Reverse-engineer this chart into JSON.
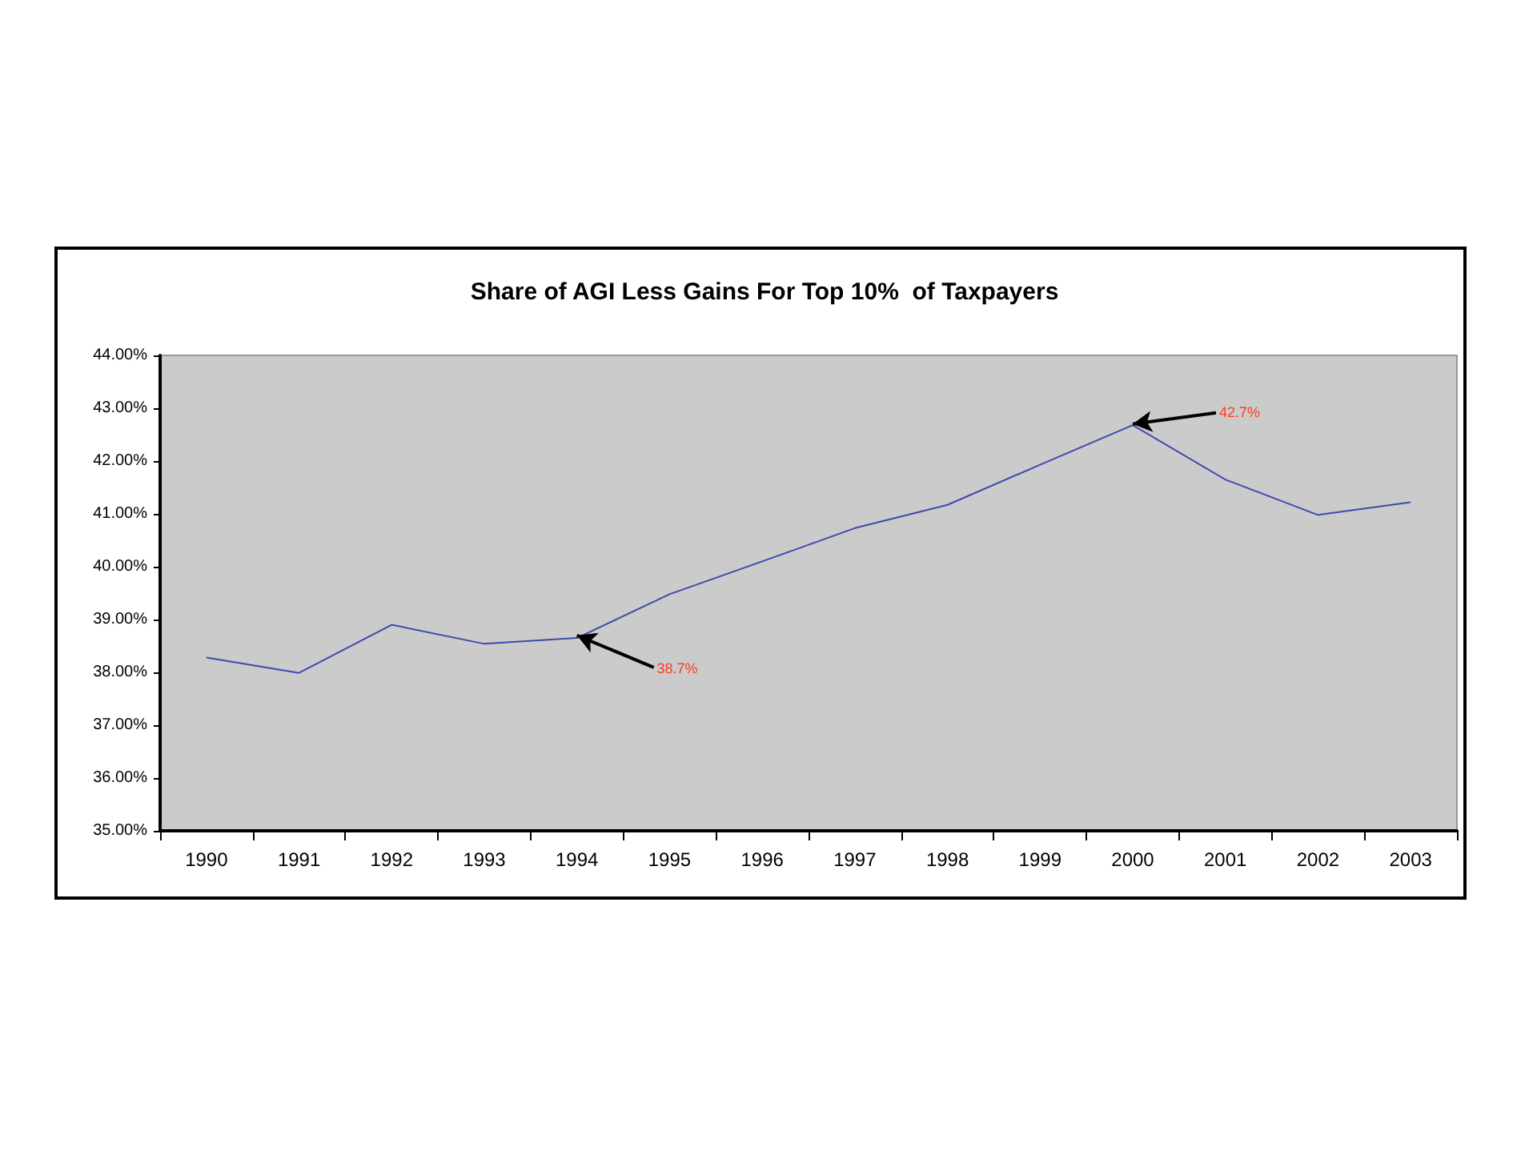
{
  "chart_data": {
    "type": "line",
    "title": "Share of AGI Less Gains For Top 10%  of Taxpayers",
    "categories": [
      "1990",
      "1991",
      "1992",
      "1993",
      "1994",
      "1995",
      "1996",
      "1997",
      "1998",
      "1999",
      "2000",
      "2001",
      "2002",
      "2003"
    ],
    "series": [
      {
        "color": "#3f48b0",
        "values": [
          38.28,
          37.99,
          38.9,
          38.54,
          38.65,
          39.48,
          40.1,
          40.73,
          41.17,
          41.93,
          42.68,
          41.65,
          40.98,
          41.22
        ]
      }
    ],
    "ylim": [
      35,
      44
    ],
    "yticks": [
      {
        "value": 35,
        "label": "35.00%"
      },
      {
        "value": 36,
        "label": "36.00%"
      },
      {
        "value": 37,
        "label": "37.00%"
      },
      {
        "value": 38,
        "label": "38.00%"
      },
      {
        "value": 39,
        "label": "39.00%"
      },
      {
        "value": 40,
        "label": "40.00%"
      },
      {
        "value": 41,
        "label": "41.00%"
      },
      {
        "value": 42,
        "label": "42.00%"
      },
      {
        "value": 43,
        "label": "43.00%"
      },
      {
        "value": 44,
        "label": "44.00%"
      }
    ],
    "annotations": [
      {
        "text": "38.7%",
        "x": "1994",
        "y": 38.7
      },
      {
        "text": "42.7%",
        "x": "2000",
        "y": 42.7
      }
    ],
    "grid": false,
    "marker": "none",
    "line_style": "solid"
  }
}
